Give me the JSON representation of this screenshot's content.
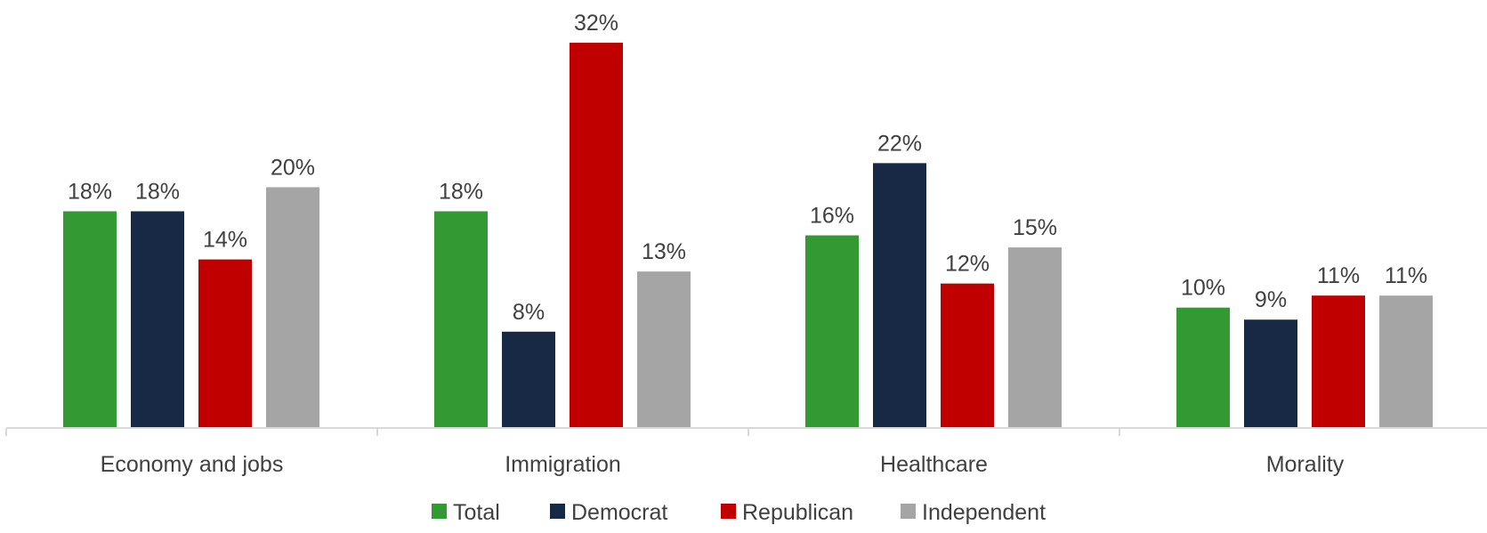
{
  "chart_data": {
    "type": "bar",
    "title": "",
    "xlabel": "",
    "ylabel": "",
    "categories": [
      "Economy and jobs",
      "Immigration",
      "Healthcare",
      "Morality"
    ],
    "series": [
      {
        "name": "Total",
        "values": [
          18,
          18,
          16,
          10
        ],
        "labels": [
          "18%",
          "18%",
          "16%",
          "10%"
        ],
        "color": "#339933"
      },
      {
        "name": "Democrat",
        "values": [
          18,
          8,
          22,
          9
        ],
        "labels": [
          "18%",
          "8%",
          "22%",
          "9%"
        ],
        "color": "#172945"
      },
      {
        "name": "Republican",
        "values": [
          14,
          32,
          12,
          11
        ],
        "labels": [
          "14%",
          "32%",
          "12%",
          "11%"
        ],
        "color": "#C00000"
      },
      {
        "name": "Independent",
        "values": [
          20,
          13,
          15,
          11
        ],
        "labels": [
          "20%",
          "13%",
          "15%",
          "11%"
        ],
        "color": "#A5A5A5"
      }
    ],
    "ylim": [
      0,
      32
    ],
    "grid": false,
    "legend_position": "bottom",
    "axis_color": "#D9D9D9",
    "text_color": "#404040"
  }
}
